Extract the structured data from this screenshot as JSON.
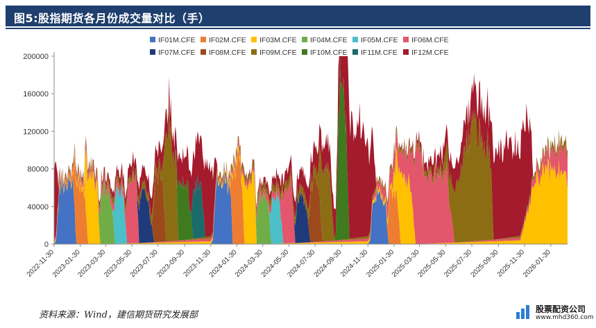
{
  "header": {
    "title": "图5:股指期货各月份成交量对比（手）"
  },
  "footer": {
    "source": "资料来源：Wind，建信期货研究发展部",
    "logo_name": "股票配资公司",
    "logo_url": "www.mhd360.com"
  },
  "chart_data": {
    "type": "area",
    "stacked": true,
    "title": "",
    "xlabel": "",
    "ylabel": "",
    "ylim": [
      0,
      200000
    ],
    "yticks": [
      0,
      40000,
      80000,
      120000,
      160000,
      200000
    ],
    "ytick_labels": [
      "0",
      "40000",
      "80000",
      "120000",
      "160000",
      "200000"
    ],
    "xlim": [
      "2022-11-30",
      "2026-03-10"
    ],
    "xticks": [
      "2022-11-30",
      "2023-01-30",
      "2023-03-30",
      "2023-05-30",
      "2023-07-30",
      "2023-09-30",
      "2023-11-30",
      "2024-01-30",
      "2024-03-30",
      "2024-05-30",
      "2024-07-30",
      "2024-09-30",
      "2024-11-30",
      "2025-01-30",
      "2025-03-30",
      "2025-05-30",
      "2025-07-30",
      "2025-09-30",
      "2025-11-30",
      "2026-01-30"
    ],
    "legend_position": "top",
    "grid": false,
    "series": [
      {
        "name": "IF01M.CFE",
        "color": "#4472c4",
        "points": [
          [
            "2022-11-30",
            0
          ],
          [
            "2022-12-05",
            4000
          ],
          [
            "2022-12-12",
            58000
          ],
          [
            "2022-12-20",
            65000
          ],
          [
            "2022-12-27",
            62000
          ],
          [
            "2023-01-03",
            70000
          ],
          [
            "2023-01-10",
            66000
          ],
          [
            "2023-01-16",
            50000
          ],
          [
            "2023-01-20",
            0
          ],
          [
            "2023-11-30",
            0
          ],
          [
            "2023-12-05",
            5000
          ],
          [
            "2023-12-12",
            62000
          ],
          [
            "2023-12-20",
            68000
          ],
          [
            "2023-12-27",
            65000
          ],
          [
            "2024-01-03",
            70000
          ],
          [
            "2024-01-10",
            60000
          ],
          [
            "2024-01-16",
            45000
          ],
          [
            "2024-01-20",
            0
          ],
          [
            "2024-11-30",
            0
          ],
          [
            "2024-12-05",
            4000
          ],
          [
            "2024-12-12",
            48000
          ],
          [
            "2024-12-20",
            52000
          ],
          [
            "2025-01-03",
            50000
          ],
          [
            "2025-01-10",
            40000
          ],
          [
            "2025-01-17",
            0
          ]
        ]
      },
      {
        "name": "IF02M.CFE",
        "color": "#ed7d31",
        "points": [
          [
            "2023-01-10",
            0
          ],
          [
            "2023-01-13",
            8000
          ],
          [
            "2023-01-18",
            60000
          ],
          [
            "2023-01-25",
            64000
          ],
          [
            "2023-02-02",
            62000
          ],
          [
            "2023-02-10",
            55000
          ],
          [
            "2023-02-17",
            0
          ],
          [
            "2024-01-10",
            0
          ],
          [
            "2024-01-15",
            8000
          ],
          [
            "2024-01-20",
            70000
          ],
          [
            "2024-01-27",
            82000
          ],
          [
            "2024-02-05",
            86000
          ],
          [
            "2024-02-10",
            76000
          ],
          [
            "2024-02-16",
            0
          ],
          [
            "2025-01-10",
            0
          ],
          [
            "2025-01-14",
            6000
          ],
          [
            "2025-01-20",
            50000
          ],
          [
            "2025-01-27",
            55000
          ],
          [
            "2025-02-07",
            50000
          ],
          [
            "2025-02-14",
            0
          ]
        ]
      },
      {
        "name": "IF03M.CFE",
        "color": "#ffc000",
        "points": [
          [
            "2022-11-30",
            2000
          ],
          [
            "2023-01-10",
            4000
          ],
          [
            "2023-02-08",
            5000
          ],
          [
            "2023-02-12",
            60000
          ],
          [
            "2023-02-20",
            72000
          ],
          [
            "2023-03-01",
            70000
          ],
          [
            "2023-03-10",
            68000
          ],
          [
            "2023-03-17",
            0
          ],
          [
            "2023-12-05",
            3000
          ],
          [
            "2024-01-10",
            4000
          ],
          [
            "2024-02-10",
            6000
          ],
          [
            "2024-02-16",
            60000
          ],
          [
            "2024-02-25",
            70000
          ],
          [
            "2024-03-05",
            72000
          ],
          [
            "2024-03-12",
            65000
          ],
          [
            "2024-03-15",
            0
          ],
          [
            "2024-12-01",
            3000
          ],
          [
            "2025-01-25",
            5000
          ],
          [
            "2025-02-05",
            45000
          ],
          [
            "2025-02-15",
            65000
          ],
          [
            "2025-02-25",
            70000
          ],
          [
            "2025-03-10",
            65000
          ],
          [
            "2025-03-21",
            0
          ],
          [
            "2025-11-20",
            4000
          ],
          [
            "2025-12-10",
            40000
          ],
          [
            "2025-12-25",
            70000
          ],
          [
            "2026-01-15",
            76000
          ],
          [
            "2026-02-05",
            80000
          ],
          [
            "2026-02-20",
            78000
          ],
          [
            "2026-03-05",
            76000
          ],
          [
            "2026-03-10",
            70000
          ]
        ]
      },
      {
        "name": "IF04M.CFE",
        "color": "#70ad47",
        "points": [
          [
            "2023-03-10",
            0
          ],
          [
            "2023-03-14",
            10000
          ],
          [
            "2023-03-20",
            58000
          ],
          [
            "2023-03-28",
            60000
          ],
          [
            "2023-04-05",
            55000
          ],
          [
            "2023-04-14",
            42000
          ],
          [
            "2023-04-21",
            0
          ],
          [
            "2024-03-10",
            0
          ],
          [
            "2024-03-14",
            8000
          ],
          [
            "2024-03-20",
            50000
          ],
          [
            "2024-03-28",
            55000
          ],
          [
            "2024-04-05",
            50000
          ],
          [
            "2024-04-12",
            40000
          ],
          [
            "2024-04-19",
            0
          ]
        ]
      },
      {
        "name": "IF05M.CFE",
        "color": "#4bc0c8",
        "points": [
          [
            "2023-04-14",
            0
          ],
          [
            "2023-04-17",
            8000
          ],
          [
            "2023-04-22",
            52000
          ],
          [
            "2023-05-01",
            58000
          ],
          [
            "2023-05-10",
            55000
          ],
          [
            "2023-05-19",
            0
          ],
          [
            "2024-04-12",
            0
          ],
          [
            "2024-04-15",
            6000
          ],
          [
            "2024-04-20",
            45000
          ],
          [
            "2024-04-28",
            50000
          ],
          [
            "2024-05-08",
            45000
          ],
          [
            "2024-05-17",
            0
          ]
        ]
      },
      {
        "name": "IF06M.CFE",
        "color": "#e3566b",
        "points": [
          [
            "2022-11-30",
            3000
          ],
          [
            "2023-02-20",
            6000
          ],
          [
            "2023-05-15",
            8000
          ],
          [
            "2023-05-20",
            62000
          ],
          [
            "2023-06-01",
            70000
          ],
          [
            "2023-06-10",
            68000
          ],
          [
            "2023-06-16",
            0
          ],
          [
            "2023-12-10",
            3000
          ],
          [
            "2024-04-05",
            6000
          ],
          [
            "2024-05-10",
            8000
          ],
          [
            "2024-05-15",
            50000
          ],
          [
            "2024-05-25",
            60000
          ],
          [
            "2024-06-05",
            62000
          ],
          [
            "2024-06-14",
            0
          ],
          [
            "2024-12-10",
            3000
          ],
          [
            "2025-03-05",
            30000
          ],
          [
            "2025-03-15",
            60000
          ],
          [
            "2025-03-25",
            120000
          ],
          [
            "2025-04-05",
            80000
          ],
          [
            "2025-04-20",
            70000
          ],
          [
            "2025-05-10",
            72000
          ],
          [
            "2025-06-01",
            75000
          ],
          [
            "2025-06-20",
            0
          ],
          [
            "2025-12-05",
            3000
          ],
          [
            "2026-03-10",
            30000
          ]
        ]
      },
      {
        "name": "IF07M.CFE",
        "color": "#1f3a7a",
        "points": [
          [
            "2023-06-09",
            0
          ],
          [
            "2023-06-12",
            6000
          ],
          [
            "2023-06-18",
            50000
          ],
          [
            "2023-06-28",
            55000
          ],
          [
            "2023-07-07",
            45000
          ],
          [
            "2023-07-21",
            0
          ],
          [
            "2024-06-09",
            0
          ],
          [
            "2024-06-12",
            6000
          ],
          [
            "2024-06-18",
            45000
          ],
          [
            "2024-06-28",
            50000
          ],
          [
            "2024-07-07",
            45000
          ],
          [
            "2024-07-19",
            0
          ]
        ]
      },
      {
        "name": "IF08M.CFE",
        "color": "#9c4a1c",
        "points": [
          [
            "2023-07-14",
            0
          ],
          [
            "2023-07-17",
            8000
          ],
          [
            "2023-07-22",
            65000
          ],
          [
            "2023-08-01",
            70000
          ],
          [
            "2023-08-10",
            66000
          ],
          [
            "2023-08-18",
            0
          ],
          [
            "2024-07-12",
            0
          ],
          [
            "2024-07-15",
            8000
          ],
          [
            "2024-07-20",
            58000
          ],
          [
            "2024-07-30",
            65000
          ],
          [
            "2024-08-08",
            60000
          ],
          [
            "2024-08-16",
            0
          ]
        ]
      },
      {
        "name": "IF09M.CFE",
        "color": "#8c6d13",
        "points": [
          [
            "2022-12-05",
            3000
          ],
          [
            "2023-06-01",
            6000
          ],
          [
            "2023-08-10",
            10000
          ],
          [
            "2023-08-15",
            80000
          ],
          [
            "2023-08-25",
            140000
          ],
          [
            "2023-09-01",
            100000
          ],
          [
            "2023-09-10",
            80000
          ],
          [
            "2023-09-15",
            0
          ],
          [
            "2023-12-15",
            3000
          ],
          [
            "2024-06-01",
            8000
          ],
          [
            "2024-08-05",
            10000
          ],
          [
            "2024-08-12",
            70000
          ],
          [
            "2024-08-22",
            80000
          ],
          [
            "2024-09-01",
            75000
          ],
          [
            "2024-09-13",
            0
          ],
          [
            "2024-12-15",
            3000
          ],
          [
            "2025-05-20",
            6000
          ],
          [
            "2025-06-15",
            40000
          ],
          [
            "2025-07-10",
            90000
          ],
          [
            "2025-08-01",
            125000
          ],
          [
            "2025-08-20",
            110000
          ],
          [
            "2025-09-10",
            100000
          ],
          [
            "2025-09-19",
            0
          ],
          [
            "2025-12-15",
            3000
          ],
          [
            "2026-03-10",
            8000
          ]
        ]
      },
      {
        "name": "IF10M.CFE",
        "color": "#3f7a1e",
        "points": [
          [
            "2023-09-08",
            0
          ],
          [
            "2023-09-11",
            8000
          ],
          [
            "2023-09-16",
            55000
          ],
          [
            "2023-09-25",
            60000
          ],
          [
            "2023-10-08",
            55000
          ],
          [
            "2023-10-20",
            0
          ],
          [
            "2024-09-13",
            0
          ],
          [
            "2024-09-16",
            8000
          ],
          [
            "2024-09-20",
            100000
          ],
          [
            "2024-09-27",
            188000
          ],
          [
            "2024-10-03",
            160000
          ],
          [
            "2024-10-10",
            120000
          ],
          [
            "2024-10-18",
            0
          ]
        ]
      },
      {
        "name": "IF11M.CFE",
        "color": "#1c6b6b",
        "points": [
          [
            "2023-10-13",
            0
          ],
          [
            "2023-10-16",
            8000
          ],
          [
            "2023-10-21",
            55000
          ],
          [
            "2023-10-30",
            58000
          ],
          [
            "2023-11-08",
            55000
          ],
          [
            "2023-11-17",
            0
          ]
        ]
      },
      {
        "name": "IF12M.CFE",
        "color": "#a31b2c",
        "points": [
          [
            "2022-11-30",
            80000
          ],
          [
            "2022-12-05",
            70000
          ],
          [
            "2022-12-10",
            12000
          ],
          [
            "2022-12-16",
            0
          ],
          [
            "2023-03-10",
            2000
          ],
          [
            "2023-09-10",
            25000
          ],
          [
            "2023-10-20",
            40000
          ],
          [
            "2023-11-12",
            60000
          ],
          [
            "2023-11-20",
            82000
          ],
          [
            "2023-11-28",
            80000
          ],
          [
            "2023-12-10",
            40000
          ],
          [
            "2023-12-15",
            0
          ],
          [
            "2024-03-10",
            2000
          ],
          [
            "2024-09-20",
            30000
          ],
          [
            "2024-09-27",
            140000
          ],
          [
            "2024-10-05",
            150000
          ],
          [
            "2024-10-15",
            130000
          ],
          [
            "2024-10-25",
            120000
          ],
          [
            "2024-11-10",
            125000
          ],
          [
            "2024-11-25",
            100000
          ],
          [
            "2024-12-10",
            70000
          ],
          [
            "2024-12-20",
            0
          ],
          [
            "2025-03-15",
            2000
          ],
          [
            "2025-09-10",
            40000
          ],
          [
            "2025-09-20",
            90000
          ],
          [
            "2025-10-05",
            95000
          ],
          [
            "2025-10-25",
            100000
          ],
          [
            "2025-11-15",
            95000
          ],
          [
            "2025-12-05",
            100000
          ],
          [
            "2025-12-15",
            60000
          ],
          [
            "2025-12-19",
            0
          ]
        ]
      }
    ]
  }
}
